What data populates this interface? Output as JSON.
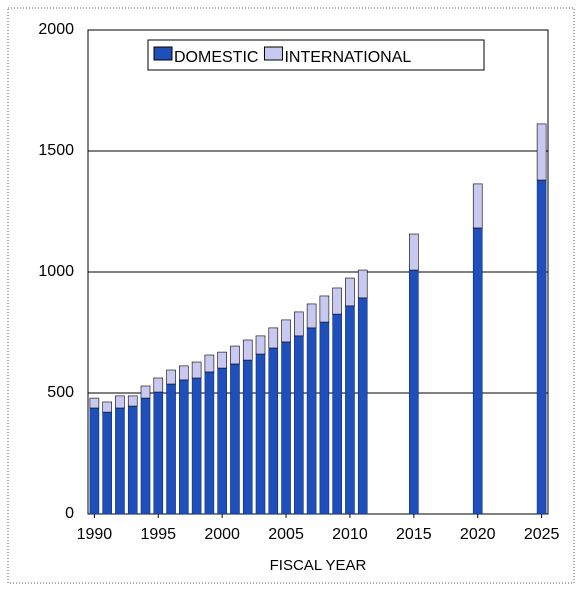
{
  "chart_data": {
    "type": "stacked_bar",
    "x": [
      1990,
      1991,
      1992,
      1993,
      1994,
      1995,
      1996,
      1997,
      1998,
      1999,
      2000,
      2001,
      2002,
      2003,
      2004,
      2005,
      2006,
      2007,
      2008,
      2009,
      2010,
      2011,
      2015,
      2020,
      2025
    ],
    "series": [
      {
        "name": "DOMESTIC",
        "color": "#1f4fb8",
        "values": [
          438,
          421,
          438,
          446,
          479,
          504,
          537,
          554,
          562,
          587,
          603,
          620,
          636,
          661,
          686,
          711,
          736,
          769,
          793,
          826,
          860,
          893,
          1008,
          1182,
          1380
        ]
      },
      {
        "name": "INTERNATIONAL",
        "color": "#c8c8f0",
        "values": [
          41,
          42,
          50,
          42,
          50,
          58,
          58,
          58,
          66,
          70,
          66,
          74,
          83,
          75,
          83,
          91,
          99,
          99,
          108,
          108,
          115,
          115,
          149,
          182,
          232
        ]
      }
    ],
    "xlabel": "FISCAL YEAR",
    "xlim": [
      1989.5,
      2025.5
    ],
    "xticks": [
      1990,
      1995,
      2000,
      2005,
      2010,
      2015,
      2020,
      2025
    ],
    "ylim": [
      0,
      2000
    ],
    "yticks": [
      0,
      500,
      1000,
      1500,
      2000
    ],
    "grid": true
  }
}
